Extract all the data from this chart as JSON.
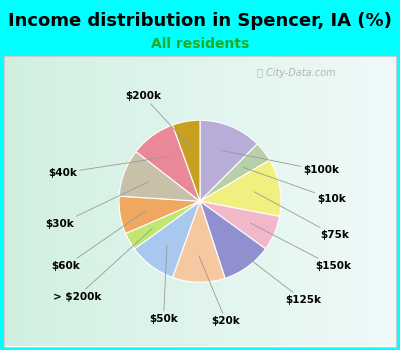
{
  "title": "Income distribution in Spencer, IA (%)",
  "subtitle": "All residents",
  "background_color": "#00FFFF",
  "chart_bg_gradient": true,
  "watermark": "City-Data.com",
  "labels_cw": [
    "$100k",
    "$10k",
    "$75k",
    "$150k",
    "$125k",
    "$20k",
    "$50k",
    "> $200k",
    "$60k",
    "$30k",
    "$40k",
    "$200k"
  ],
  "values_cw": [
    12.5,
    4.0,
    11.5,
    7.0,
    10.0,
    10.5,
    9.5,
    3.5,
    7.5,
    9.5,
    9.0,
    5.5
  ],
  "colors_cw": [
    "#b8acd8",
    "#b8d0a8",
    "#f0f080",
    "#f0b8c8",
    "#9090d0",
    "#f5c8a0",
    "#a8c8f0",
    "#c0e870",
    "#f0a860",
    "#c8c0a8",
    "#e88898",
    "#c8a020"
  ],
  "startangle": 90,
  "title_fontsize": 13,
  "subtitle_fontsize": 10,
  "subtitle_color": "#22aa22",
  "label_fontsize": 7.5,
  "label_data": [
    [
      "$100k",
      1.28,
      0.38,
      "left"
    ],
    [
      "$10k",
      1.45,
      0.03,
      "left"
    ],
    [
      "$75k",
      1.48,
      -0.42,
      "left"
    ],
    [
      "$150k",
      1.42,
      -0.8,
      "left"
    ],
    [
      "$125k",
      1.05,
      -1.22,
      "left"
    ],
    [
      "$20k",
      0.32,
      -1.48,
      "center"
    ],
    [
      "$50k",
      -0.45,
      -1.45,
      "center"
    ],
    [
      "> $200k",
      -1.22,
      -1.18,
      "right"
    ],
    [
      "$60k",
      -1.48,
      -0.8,
      "right"
    ],
    [
      "$30k",
      -1.55,
      -0.28,
      "right"
    ],
    [
      "$40k",
      -1.52,
      0.35,
      "right"
    ],
    [
      "$200k",
      -0.7,
      1.3,
      "center"
    ]
  ]
}
